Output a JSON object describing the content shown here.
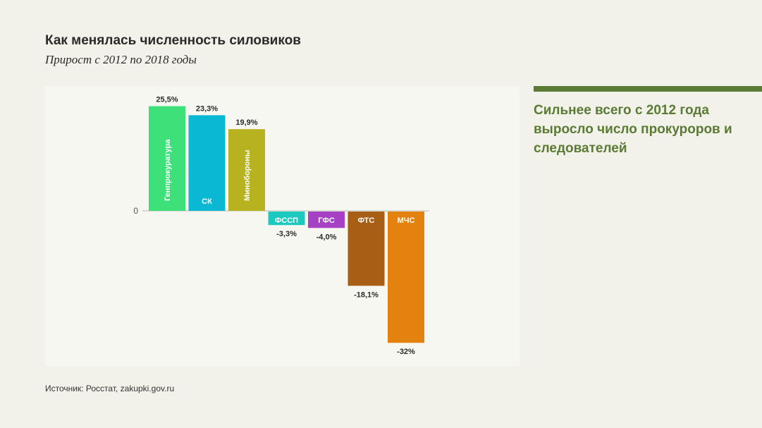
{
  "header": {
    "title": "Как менялась численность силовиков",
    "subtitle": "Прирост с 2012 по 2018 годы"
  },
  "source": "Источник: Росстат, zakupki.gov.ru",
  "aside": {
    "text": "Сильнее всего с 2012 года выросло число прокуроров и следователей",
    "accent_color": "#5a7a35"
  },
  "chart_data": {
    "type": "bar",
    "title": "Как менялась численность силовиков",
    "subtitle": "Прирост с 2012 по 2018 годы",
    "unit": "%",
    "categories": [
      "Генпрокуратура",
      "СК",
      "Минобороны",
      "ФССП",
      "ГФС",
      "ФТС",
      "МЧС"
    ],
    "values": [
      25.5,
      23.3,
      19.9,
      -3.3,
      -4.0,
      -18.1,
      -32
    ],
    "value_labels": [
      "25,5%",
      "23,3%",
      "19,9%",
      "-3,3%",
      "-4,0%",
      "-18,1%",
      "-32%"
    ],
    "colors": [
      "#3ee07a",
      "#0bb8d4",
      "#b7b21f",
      "#1cc9bf",
      "#a640c4",
      "#a85e14",
      "#e3820f"
    ],
    "category_label_vertical": [
      true,
      false,
      true,
      false,
      false,
      false,
      false
    ],
    "zero_label": "0",
    "xlabel": "",
    "ylabel": "",
    "grid": false,
    "legend": "none"
  }
}
